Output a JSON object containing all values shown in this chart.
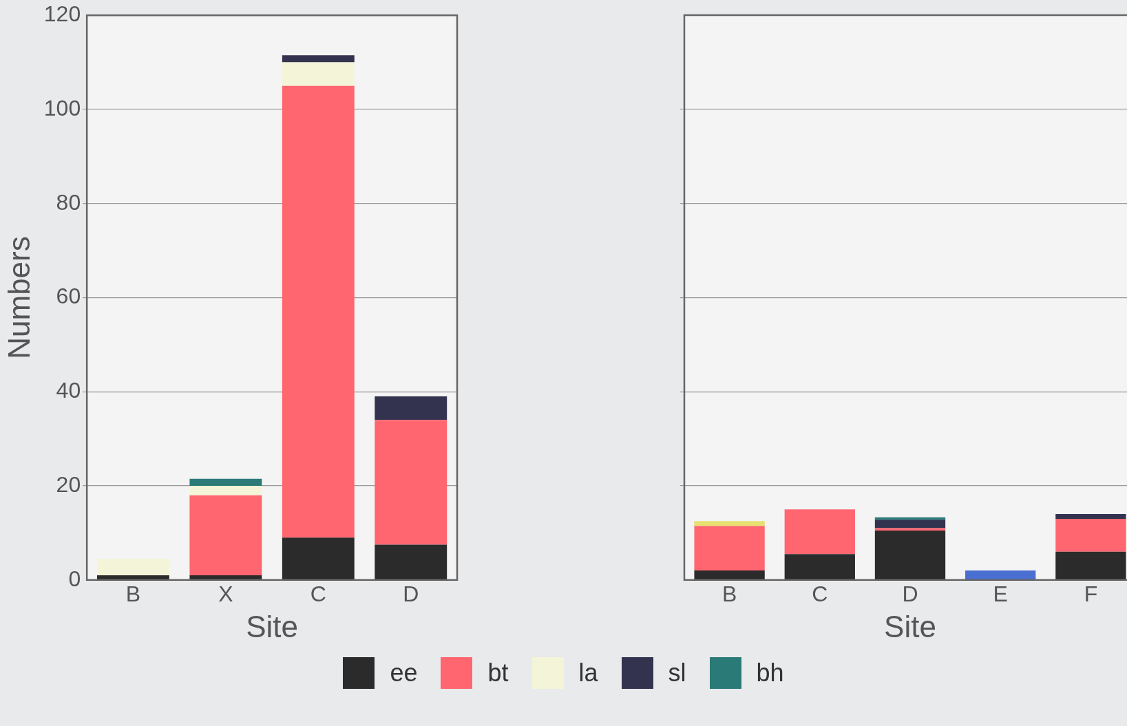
{
  "chart_data": [
    {
      "type": "bar",
      "xlabel": "Site",
      "ylabel": "Numbers",
      "categories": [
        "B",
        "X",
        "C",
        "D"
      ],
      "stacked": true,
      "ylim": [
        0,
        120
      ],
      "yticks": [
        0,
        20,
        40,
        60,
        80,
        100,
        120
      ],
      "grid": "y",
      "legend": "bottom",
      "series": [
        {
          "name": "ee",
          "color": "#2b2b2b",
          "values": [
            1,
            1,
            9,
            7.5
          ]
        },
        {
          "name": "bt",
          "color": "#ff6670",
          "values": [
            0,
            17,
            96,
            26.5
          ]
        },
        {
          "name": "la",
          "color": "#f4f4d8",
          "values": [
            3.5,
            2,
            5,
            0
          ]
        },
        {
          "name": "sl",
          "color": "#33334f",
          "values": [
            0,
            0,
            1.5,
            5
          ]
        },
        {
          "name": "bh",
          "color": "#2a7a78",
          "values": [
            0,
            1.5,
            0,
            0
          ]
        }
      ]
    },
    {
      "type": "bar",
      "xlabel": "Site",
      "categories": [
        "B",
        "C",
        "D",
        "E",
        "F"
      ],
      "stacked": true,
      "ylim": [
        0,
        120
      ],
      "yticks": [
        0,
        20,
        40,
        60,
        80,
        100,
        120
      ],
      "grid": "y",
      "tick_labels": "x",
      "series": [
        {
          "color": "#2b2b2b",
          "values": [
            2,
            5.5,
            10.5,
            0,
            6
          ]
        },
        {
          "color": "#ff6670",
          "values": [
            9.5,
            9.5,
            0.5,
            0,
            7
          ]
        },
        {
          "color": "#e8e070",
          "values": [
            1,
            0,
            0,
            0,
            0
          ]
        },
        {
          "color": "#33334f",
          "values": [
            0,
            0,
            1.8,
            0,
            1
          ]
        },
        {
          "color": "#2a7a78",
          "values": [
            0,
            0,
            0.5,
            0,
            0
          ]
        },
        {
          "color": "#4a6fd0",
          "values": [
            0,
            0,
            0,
            2,
            0
          ]
        }
      ]
    }
  ]
}
